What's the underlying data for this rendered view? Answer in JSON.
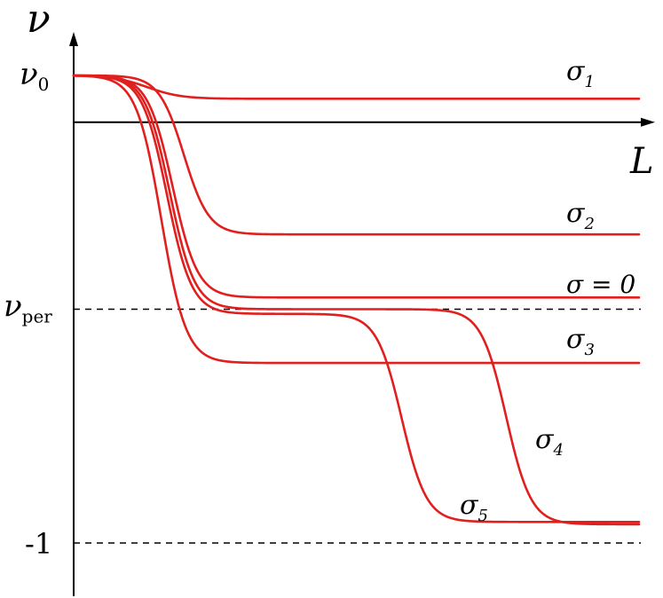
{
  "chart_data": {
    "type": "line",
    "xlabel": "L",
    "ylabel": "ν",
    "curve_color": "#e0201f",
    "y_ticks": [
      {
        "main": "ν",
        "sub": "0",
        "value": 1.0
      },
      {
        "main": "ν",
        "sub": "per",
        "value": 0.0
      },
      {
        "main": "-1",
        "sub": "",
        "value": -1.0
      }
    ],
    "reference_lines": [
      {
        "label": "ν_per",
        "y": 0.0
      },
      {
        "label": "-1",
        "y": -1.0
      }
    ],
    "x_axis_y": 0.8,
    "xlim": [
      0,
      10
    ],
    "ylim": [
      -1.23,
      1.25
    ],
    "series": [
      {
        "name": "σ1",
        "main": "σ",
        "sub": "1",
        "plateaus": [
          [
            1.0,
            1.3,
            0.3
          ],
          [
            0.9,
            0,
            0
          ]
        ]
      },
      {
        "name": "σ2",
        "main": "σ",
        "sub": "2",
        "plateaus": [
          [
            1.0,
            1.95,
            0.22
          ],
          [
            0.32,
            0,
            0
          ]
        ]
      },
      {
        "name": "σ = 0",
        "main": "σ = 0",
        "sub": "",
        "plateaus": [
          [
            1.0,
            1.75,
            0.22
          ],
          [
            0.05,
            0,
            0
          ]
        ]
      },
      {
        "name": "σ3",
        "main": "σ",
        "sub": "3",
        "plateaus": [
          [
            1.0,
            1.55,
            0.22
          ],
          [
            -0.23,
            0,
            0
          ]
        ]
      },
      {
        "name": "σ4",
        "main": "σ",
        "sub": "4",
        "plateaus": [
          [
            1.0,
            1.7,
            0.22
          ],
          [
            0.0,
            7.65,
            0.22
          ],
          [
            -0.92,
            0,
            0
          ]
        ]
      },
      {
        "name": "σ5",
        "main": "σ",
        "sub": "5",
        "plateaus": [
          [
            1.0,
            1.65,
            0.22
          ],
          [
            -0.02,
            5.8,
            0.22
          ],
          [
            -0.91,
            0,
            0
          ]
        ]
      }
    ]
  }
}
